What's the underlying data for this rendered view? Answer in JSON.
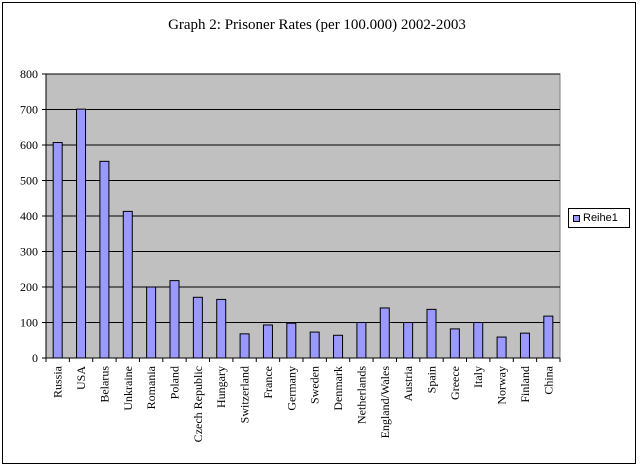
{
  "chart_data": {
    "type": "bar",
    "title": "Graph 2: Prisoner Rates (per 100.000) 2002-2003",
    "categories": [
      "Russia",
      "USA",
      "Belarus",
      "Unkraine",
      "Romania",
      "Poland",
      "Czech Republic",
      "Hungary",
      "Switzerland",
      "France",
      "Germany",
      "Sweden",
      "Denmark",
      "Netherlands",
      "England/Wales",
      "Austria",
      "Spain",
      "Greece",
      "Italy",
      "Norway",
      "Finland",
      "China"
    ],
    "series": [
      {
        "name": "Reihe1",
        "values": [
          607,
          701,
          554,
          413,
          200,
          218,
          171,
          165,
          68,
          93,
          98,
          73,
          64,
          100,
          141,
          100,
          137,
          82,
          100,
          59,
          70,
          118
        ]
      }
    ],
    "ylim": [
      0,
      800
    ],
    "yticks": [
      0,
      100,
      200,
      300,
      400,
      500,
      600,
      700,
      800
    ],
    "grid": true,
    "legend_position": "right",
    "bar_color": "#9999ff",
    "plot_background": "#c0c0c0"
  }
}
